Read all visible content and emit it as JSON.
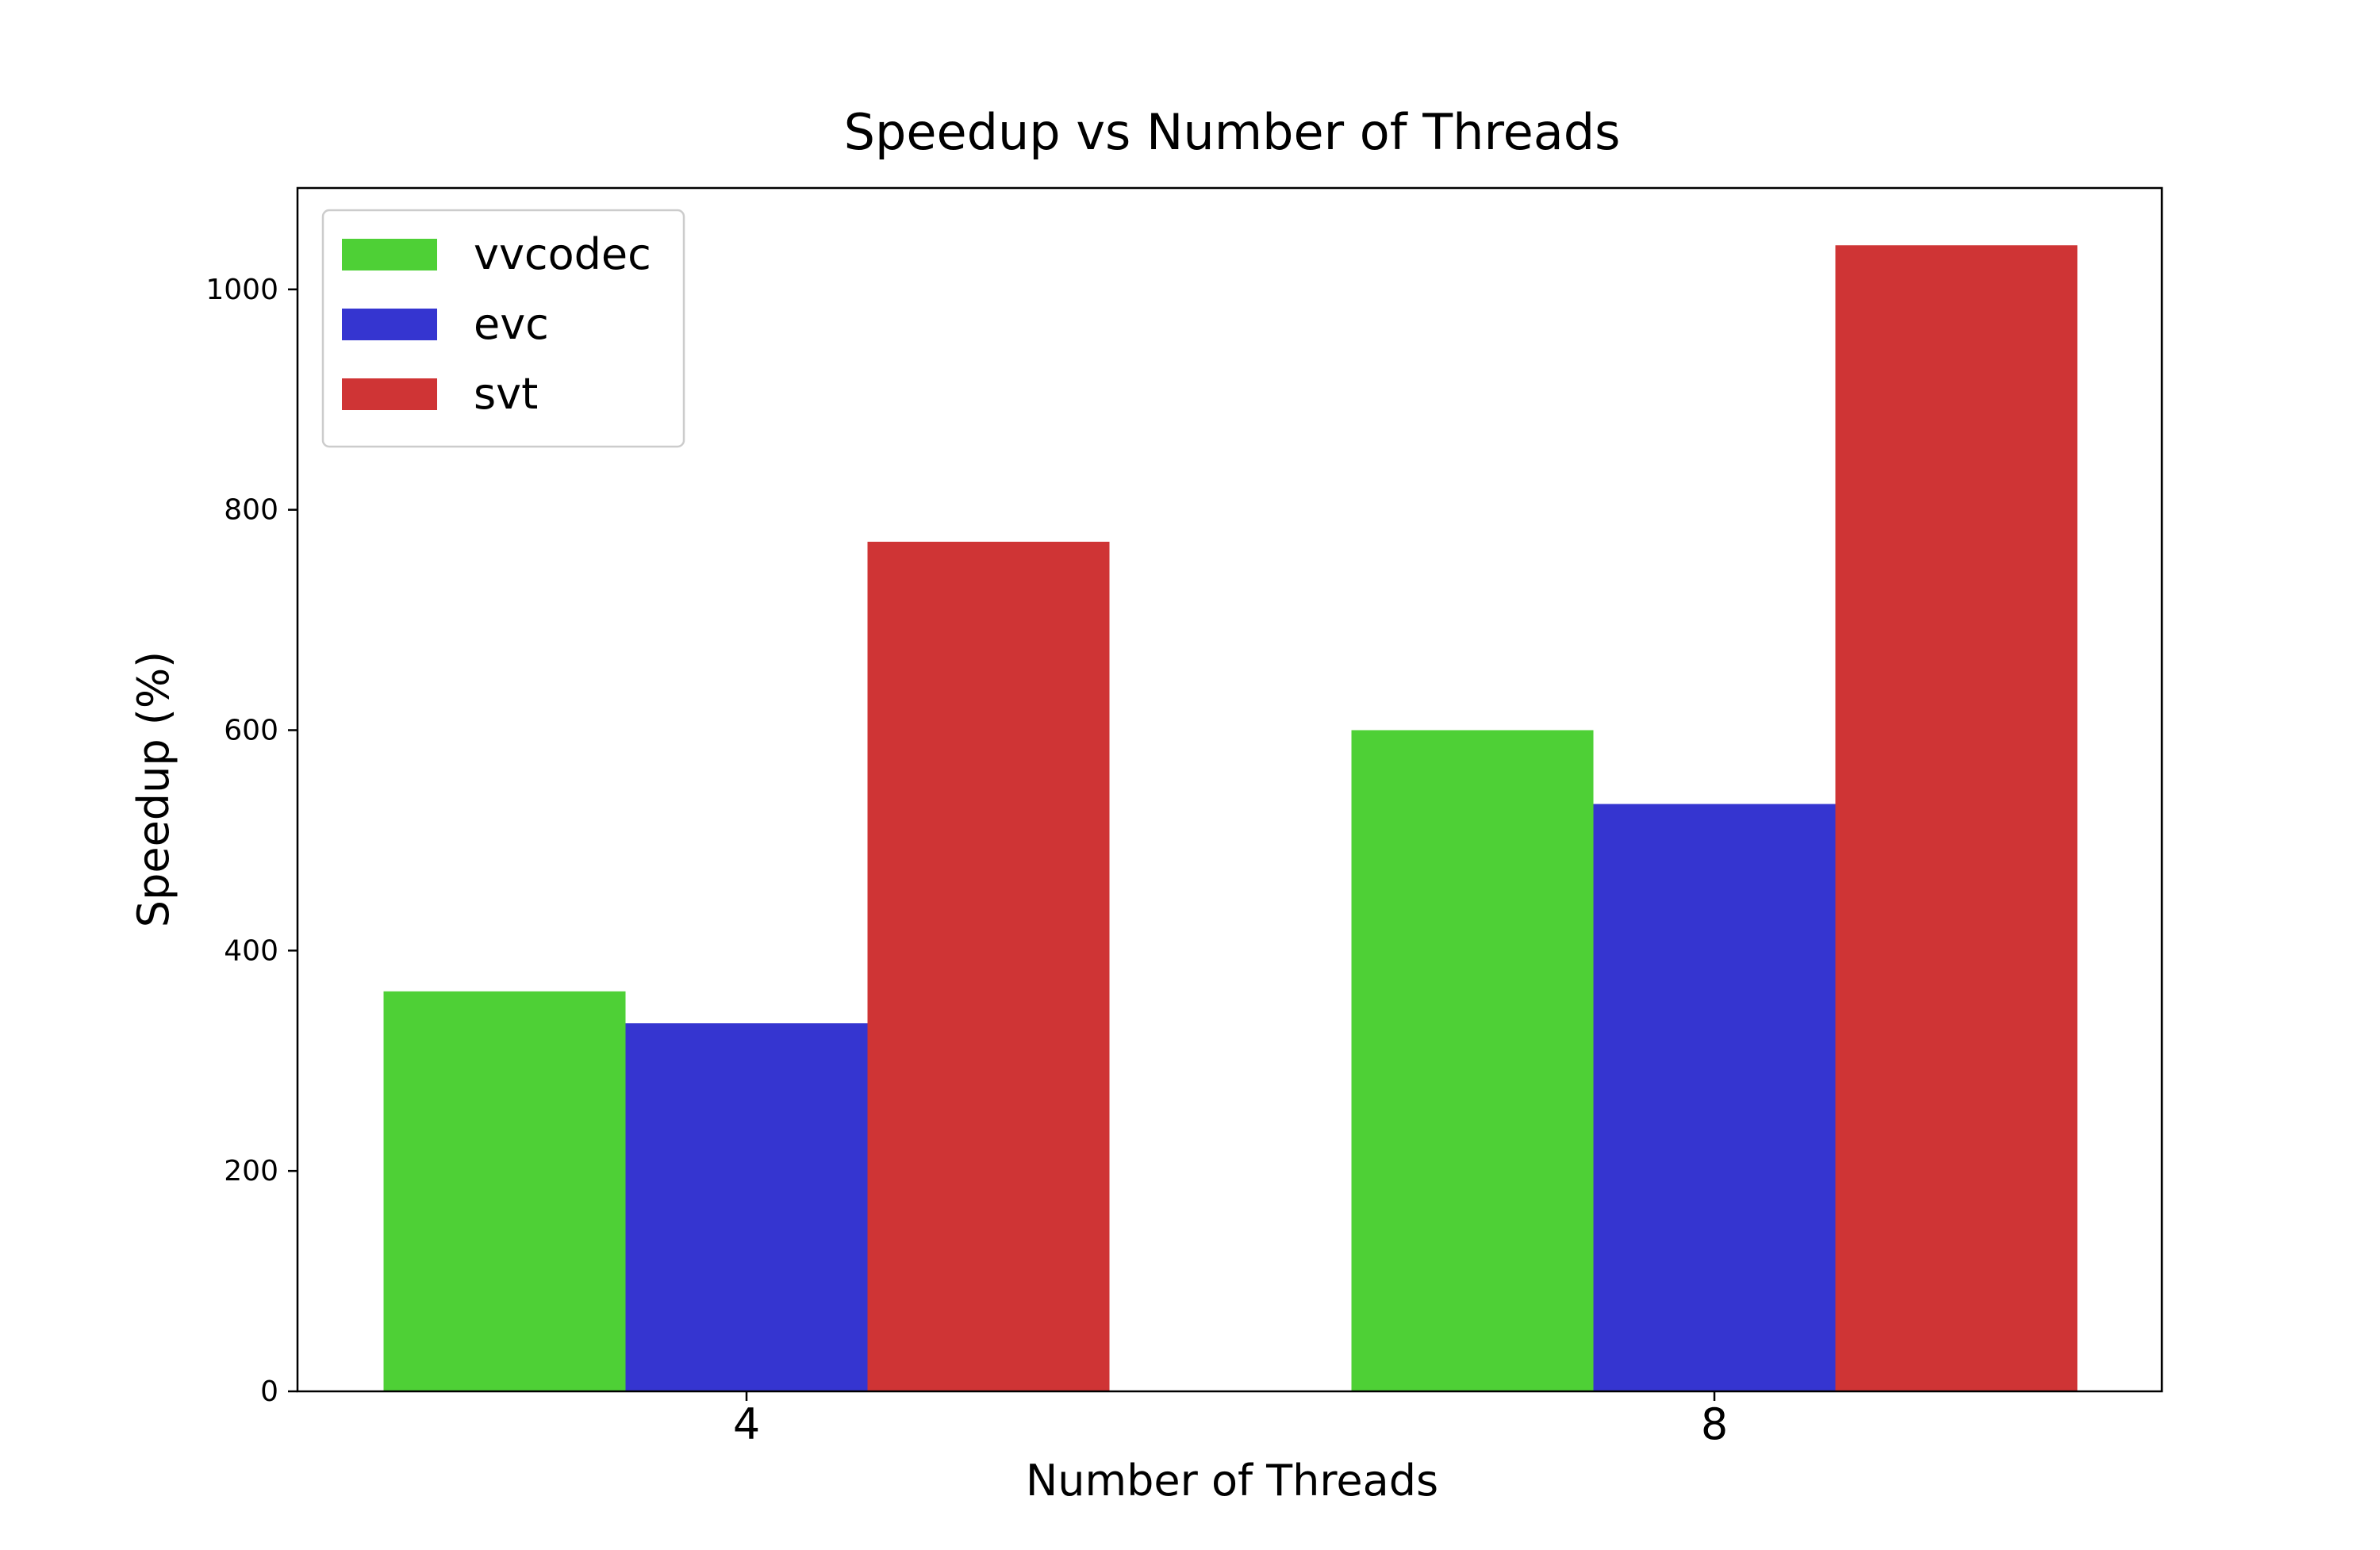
{
  "chart_data": {
    "type": "bar",
    "title": "Speedup vs Number of Threads",
    "xlabel": "Number of Threads",
    "ylabel": "Speedup (%)",
    "categories": [
      "4",
      "8"
    ],
    "series": [
      {
        "name": "vvcodec",
        "color": "#4ed036",
        "values": [
          363,
          600
        ]
      },
      {
        "name": "evc",
        "color": "#3535d0",
        "values": [
          334,
          533
        ]
      },
      {
        "name": "svt",
        "color": "#cf3435",
        "values": [
          771,
          1040
        ]
      }
    ],
    "ylim": [
      0,
      1092
    ],
    "yticks": [
      0,
      200,
      400,
      600,
      800,
      1000
    ],
    "grid": false,
    "legend": "top-left"
  }
}
